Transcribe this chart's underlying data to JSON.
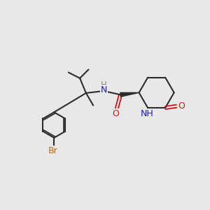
{
  "background_color": "#e8e8e8",
  "bond_color": "#2d2d2d",
  "bond_width": 1.5,
  "atom_colors": {
    "N": "#1a1acc",
    "O": "#cc1a1a",
    "Br": "#cc6600",
    "C": "#2d2d2d"
  },
  "font_size": 9.0
}
